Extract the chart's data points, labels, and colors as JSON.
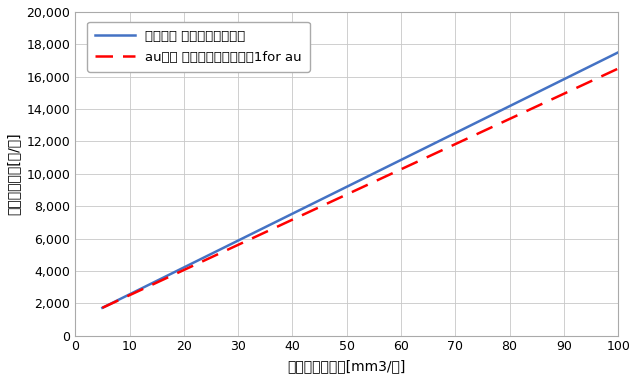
{
  "title": "",
  "xlabel": "月間ガス使用量[mm3/月]",
  "ylabel": "測定ガス料金[円/月]",
  "xlim": [
    0,
    100
  ],
  "ylim": [
    0,
    20000
  ],
  "xticks": [
    0,
    10,
    20,
    30,
    40,
    50,
    60,
    70,
    80,
    90,
    100
  ],
  "yticks": [
    0,
    2000,
    4000,
    6000,
    8000,
    10000,
    12000,
    14000,
    16000,
    18000,
    20000
  ],
  "line1_label": "東邦ガス エコジョーズ料金",
  "line1_color": "#4472c4",
  "line1_x": [
    5,
    100
  ],
  "line1_y": [
    1720,
    17500
  ],
  "line2_label": "auガス カテエネガスプラン1for au",
  "line2_color": "#ff0000",
  "line2_x": [
    5,
    100
  ],
  "line2_y": [
    1720,
    16500
  ],
  "background_color": "#ffffff",
  "grid_color": "#c8c8c8",
  "legend_fontsize": 9.5,
  "axis_fontsize": 10,
  "tick_fontsize": 9,
  "linewidth": 1.8
}
